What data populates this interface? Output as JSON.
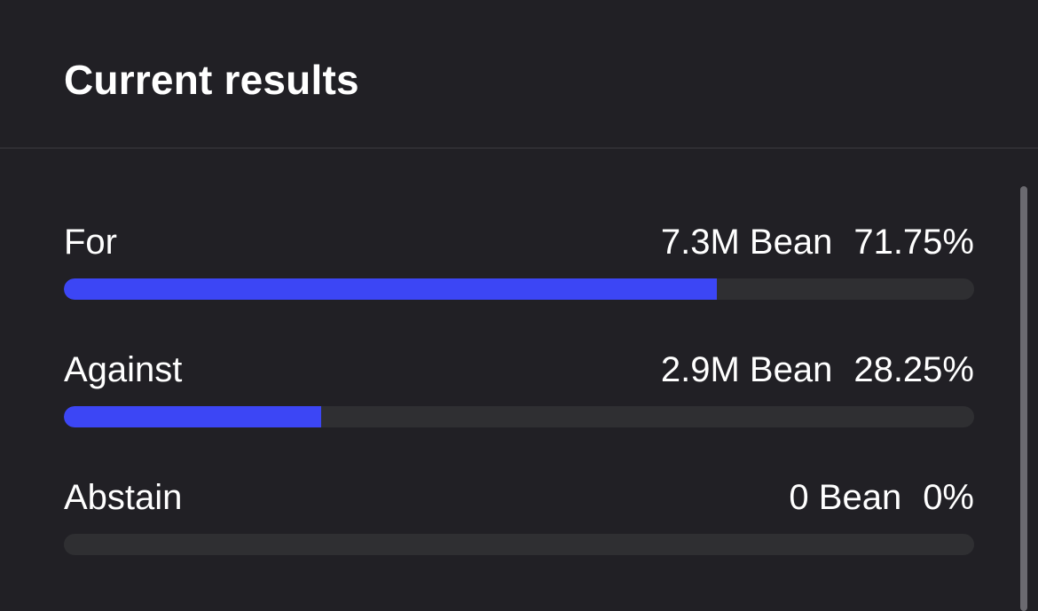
{
  "title": "Current results",
  "accent_color": "#3c46f5",
  "track_color": "#2f2f32",
  "results": [
    {
      "label": "For",
      "amount": "7.3M Bean",
      "percent": "71.75%",
      "fraction": 0.7175
    },
    {
      "label": "Against",
      "amount": "2.9M Bean",
      "percent": "28.25%",
      "fraction": 0.2825
    },
    {
      "label": "Abstain",
      "amount": "0 Bean",
      "percent": "0%",
      "fraction": 0
    }
  ]
}
